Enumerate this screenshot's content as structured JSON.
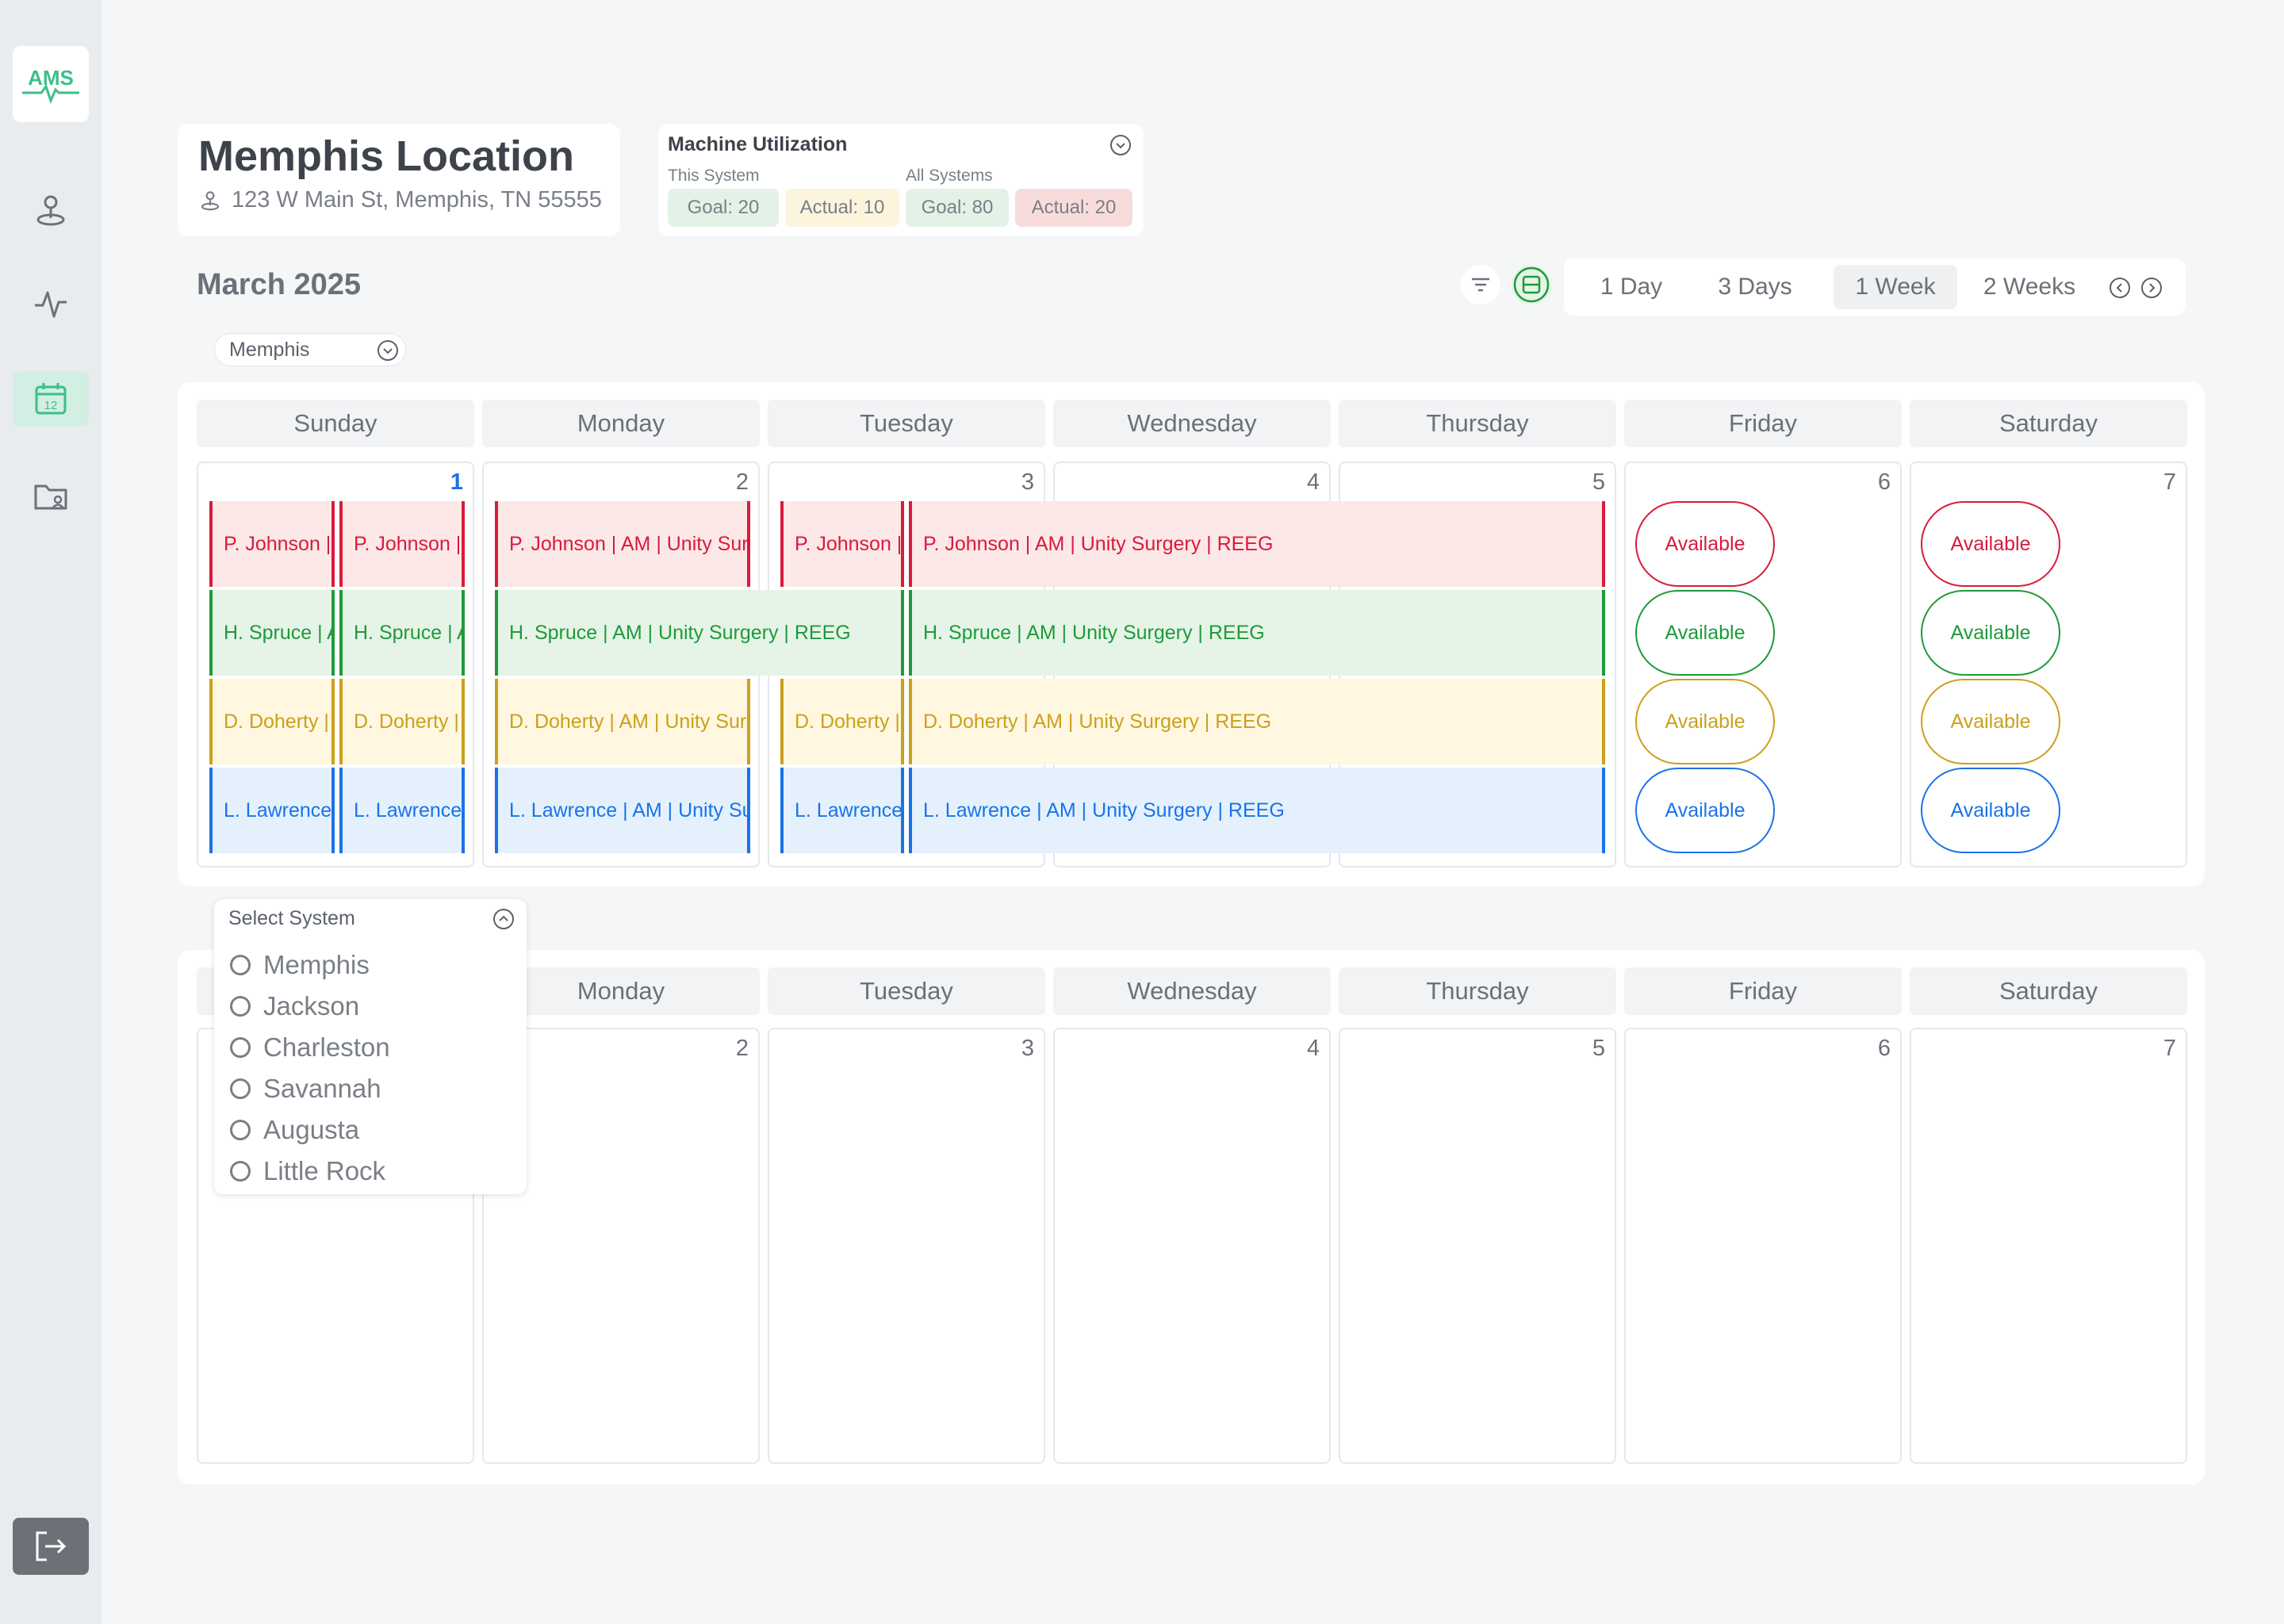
{
  "sidebar": {
    "logo_text": "AMS",
    "items": [
      {
        "icon": "location-pin-icon"
      },
      {
        "icon": "activity-icon"
      },
      {
        "icon": "calendar-icon",
        "label": "12",
        "active": true
      },
      {
        "icon": "folder-user-icon"
      }
    ],
    "logout_icon": "logout-icon"
  },
  "location": {
    "title": "Memphis Location",
    "address": "123 W Main St, Memphis, TN 55555"
  },
  "utilization": {
    "title": "Machine Utilization",
    "this_system_label": "This System",
    "all_systems_label": "All Systems",
    "this_goal": "Goal: 20",
    "this_actual": "Actual: 10",
    "all_goal": "Goal: 80",
    "all_actual": "Actual: 20",
    "colors": {
      "goal": "#e3f1e6",
      "actual_ok": "#fdf4de",
      "actual_bad": "#f8dcdc"
    }
  },
  "calendar": {
    "month": "March 2025",
    "views": [
      "1 Day",
      "3 Days",
      "1 Week",
      "2 Weeks"
    ],
    "selected_view": "1 Week",
    "location_filter": "Memphis",
    "days": [
      "Sunday",
      "Monday",
      "Tuesday",
      "Wednesday",
      "Thursday",
      "Friday",
      "Saturday"
    ],
    "week1_dates": [
      "1",
      "2",
      "3",
      "4",
      "5",
      "6",
      "7"
    ],
    "week2_dates": [
      "2",
      "3",
      "4",
      "5",
      "6",
      "7"
    ],
    "events": {
      "sun_a": [
        "P. Johnson |",
        "H. Spruce | A",
        "D. Doherty |",
        "L. Lawrence"
      ],
      "sun_b": [
        "P. Johnson |",
        "H. Spruce | A",
        "D. Doherty |",
        "L. Lawrence"
      ],
      "mon": [
        "P. Johnson | AM | Unity Sur",
        "H. Spruce | AM | Unity Surgery | REEG",
        "D. Doherty | AM | Unity Surg",
        "L. Lawrence | AM | Unity Su"
      ],
      "tue_a": [
        "P. Johnson |",
        null,
        "D. Doherty |",
        "L. Lawrence"
      ],
      "tue_long": [
        "P. Johnson | AM | Unity Surgery | REEG",
        "H. Spruce | AM | Unity Surgery | REEG",
        "D. Doherty | AM | Unity Surgery | REEG",
        "L. Lawrence | AM | Unity Surgery | REEG"
      ]
    },
    "available_label": "Available",
    "event_colors": {
      "red": "#d81b3c",
      "green": "#1e9a3a",
      "yellow": "#cba01b",
      "blue": "#1a73e8"
    }
  },
  "system_select": {
    "title": "Select System",
    "options": [
      "Memphis",
      "Jackson",
      "Charleston",
      "Savannah",
      "Augusta",
      "Little Rock"
    ]
  }
}
